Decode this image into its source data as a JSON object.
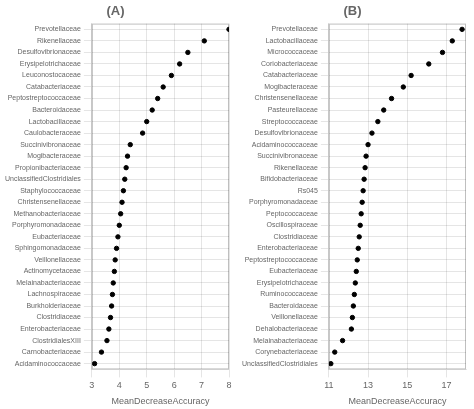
{
  "chart_data": [
    {
      "type": "scatter",
      "title": "(A)",
      "xlabel": "MeanDecreaseAccuracy",
      "xlim": [
        3,
        8
      ],
      "xticks": [
        3,
        4,
        5,
        6,
        7,
        8
      ],
      "categories": [
        "Prevotellaceae",
        "Rikenellaceae",
        "Desulfovibrionaceae",
        "Erysipelotrichaceae",
        "Leuconostocaceae",
        "Catabacteriaceae",
        "Peptostreptococcaceae",
        "Bacteroidaceae",
        "Lactobacillaceae",
        "Caulobacteraceae",
        "Succinivibronaceae",
        "Mogibacteraceae",
        "Propionibacteriaceae",
        "UnclassifiedClostridiales",
        "Staphylococcaceae",
        "Christensenellaceae",
        "Methanobacteriaceae",
        "Porphyromonadaceae",
        "Eubacteriaceae",
        "Sphingomonadaceae",
        "Veillonellaceae",
        "Actinomycetaceae",
        "Melainabacteriaceae",
        "Lachnospiraceae",
        "Burkholderiaceae",
        "Clostridiaceae",
        "Enterobacteriaceae",
        "ClostridialesXIII",
        "Carnobacteriaceae",
        "Acidaminococcaceae"
      ],
      "values": [
        8.0,
        7.1,
        6.5,
        6.2,
        5.9,
        5.6,
        5.4,
        5.2,
        5.0,
        4.85,
        4.4,
        4.3,
        4.25,
        4.2,
        4.15,
        4.1,
        4.05,
        4.0,
        3.95,
        3.9,
        3.85,
        3.82,
        3.78,
        3.75,
        3.72,
        3.68,
        3.62,
        3.55,
        3.35,
        3.1
      ],
      "color": "#000000",
      "grid": true
    },
    {
      "type": "scatter",
      "title": "(B)",
      "xlabel": "MeanDecreaseAccuracy",
      "xlim": [
        11,
        18
      ],
      "xticks": [
        11,
        13,
        15,
        17
      ],
      "categories": [
        "Prevotellaceae",
        "Lactobacillaceae",
        "Micrococcaceae",
        "Coriobacteriaceae",
        "Catabacteriaceae",
        "Mogibacteraceae",
        "Christensenellaceae",
        "Pasteurellaceae",
        "Streptococcaceae",
        "Desulfovibrionaceae",
        "Acidaminococcaceae",
        "Succinivibronaceae",
        "Rikenellaceae",
        "Bifidobacteriaceae",
        "Rs045",
        "Porphyromonadaceae",
        "Peptococcaceae",
        "Oscillospiraceae",
        "Clostridiaceae",
        "Enterobacteriaceae",
        "Peptostreptococcaceae",
        "Eubacteriaceae",
        "Erysipelotrichaceae",
        "Ruminococcaceae",
        "Bacteroidaceae",
        "Veillonellaceae",
        "Dehalobacteriaceae",
        "Melainabacteriaceae",
        "Corynebacteriaceae",
        "UnclassifiedClostridiales"
      ],
      "values": [
        17.8,
        17.3,
        16.8,
        16.1,
        15.2,
        14.8,
        14.2,
        13.8,
        13.5,
        13.2,
        13.0,
        12.9,
        12.85,
        12.8,
        12.75,
        12.7,
        12.65,
        12.6,
        12.55,
        12.5,
        12.45,
        12.4,
        12.35,
        12.3,
        12.25,
        12.2,
        12.15,
        11.7,
        11.3,
        11.1
      ],
      "color": "#000000",
      "grid": true
    }
  ]
}
